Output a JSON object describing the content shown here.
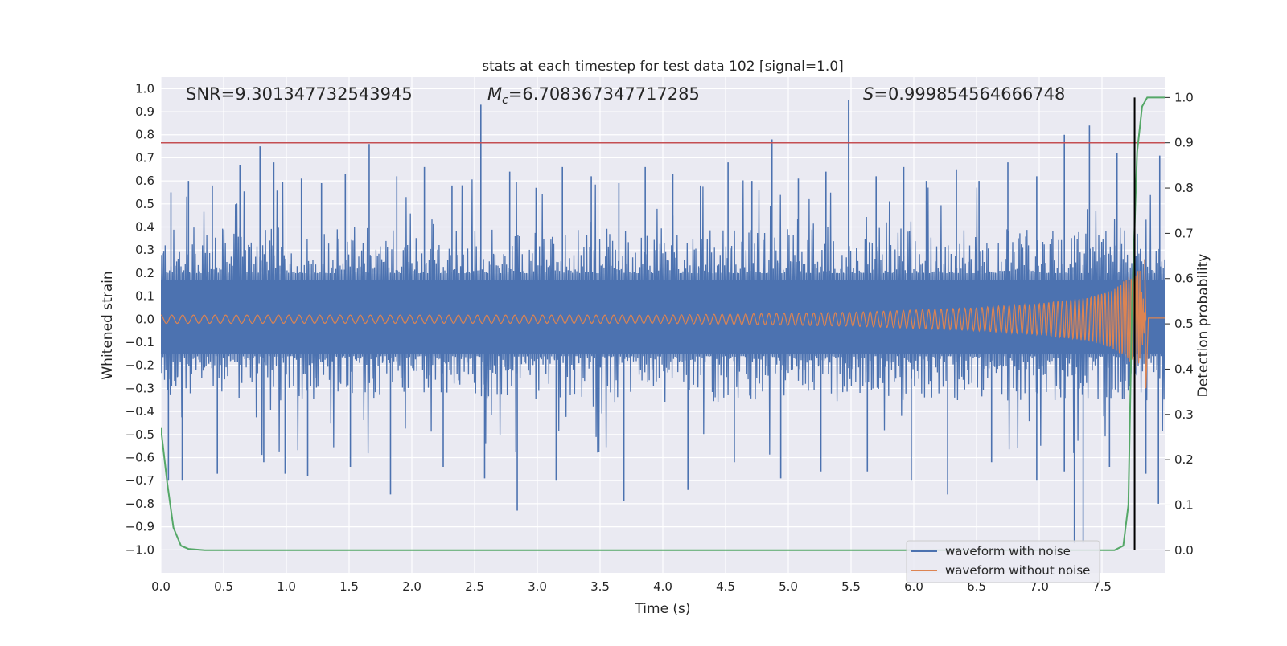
{
  "chart_data": {
    "type": "line",
    "title": "stats at each timestep for test data 102 [signal=1.0]",
    "xlabel": "Time (s)",
    "ylabel": "Whitened strain",
    "ylabel_right": "Detection probability",
    "xlim": [
      0.0,
      8.0
    ],
    "ylim": [
      -1.1,
      1.05
    ],
    "ylim_right": [
      -0.05,
      1.045
    ],
    "x_ticks": [
      "0.0",
      "0.5",
      "1.0",
      "1.5",
      "2.0",
      "2.5",
      "3.0",
      "3.5",
      "4.0",
      "4.5",
      "5.0",
      "5.5",
      "6.0",
      "6.5",
      "7.0",
      "7.5"
    ],
    "y_ticks": [
      "1.0",
      "0.9",
      "0.8",
      "0.7",
      "0.6",
      "0.5",
      "0.4",
      "0.3",
      "0.2",
      "0.1",
      "0.0",
      "−0.1",
      "−0.2",
      "−0.3",
      "−0.4",
      "−0.5",
      "−0.6",
      "−0.7",
      "−0.8",
      "−0.9",
      "−1.0"
    ],
    "y_ticks_right": [
      "1.0",
      "0.9",
      "0.8",
      "0.7",
      "0.6",
      "0.5",
      "0.4",
      "0.3",
      "0.2",
      "0.1",
      "0.0"
    ],
    "annotations": {
      "snr": "SNR=9.301347732543945",
      "mc_symbol": "M",
      "mc_sub": "c",
      "mc_value": "=6.708367347717285",
      "s_symbol": "S",
      "s_value": "=0.999854564666748"
    },
    "threshold": {
      "y_right": 0.9,
      "color": "#c44e52"
    },
    "marker_line": {
      "x": 7.76,
      "y_right_range": [
        0.0,
        1.0
      ],
      "color": "#000000"
    },
    "series": [
      {
        "name": "waveform with noise",
        "color": "#4c72b0",
        "spikes_positive": [
          [
            0.08,
            0.55
          ],
          [
            0.22,
            0.6
          ],
          [
            0.41,
            0.58
          ],
          [
            0.63,
            0.67
          ],
          [
            0.79,
            0.75
          ],
          [
            0.9,
            0.68
          ],
          [
            1.12,
            0.61
          ],
          [
            1.28,
            0.59
          ],
          [
            1.47,
            0.63
          ],
          [
            1.66,
            0.76
          ],
          [
            1.88,
            0.62
          ],
          [
            2.1,
            0.66
          ],
          [
            2.32,
            0.58
          ],
          [
            2.55,
            0.93
          ],
          [
            2.78,
            0.64
          ],
          [
            2.99,
            0.57
          ],
          [
            3.2,
            0.66
          ],
          [
            3.43,
            0.62
          ],
          [
            3.65,
            0.59
          ],
          [
            3.86,
            0.66
          ],
          [
            4.08,
            0.63
          ],
          [
            4.3,
            0.58
          ],
          [
            4.52,
            0.68
          ],
          [
            4.71,
            0.6
          ],
          [
            4.87,
            0.78
          ],
          [
            5.08,
            0.61
          ],
          [
            5.3,
            0.64
          ],
          [
            5.48,
            0.95
          ],
          [
            5.7,
            0.62
          ],
          [
            5.92,
            0.66
          ],
          [
            6.1,
            0.6
          ],
          [
            6.34,
            0.65
          ],
          [
            6.52,
            0.6
          ],
          [
            6.75,
            0.68
          ],
          [
            6.98,
            0.62
          ],
          [
            7.2,
            0.8
          ],
          [
            7.4,
            0.84
          ],
          [
            7.62,
            0.72
          ],
          [
            7.96,
            0.71
          ]
        ],
        "spikes_negative": [
          [
            0.06,
            -0.7
          ],
          [
            0.17,
            -0.7
          ],
          [
            0.45,
            -0.67
          ],
          [
            0.82,
            -0.62
          ],
          [
            0.99,
            -0.67
          ],
          [
            1.17,
            -0.68
          ],
          [
            1.51,
            -0.64
          ],
          [
            1.83,
            -0.76
          ],
          [
            2.25,
            -0.64
          ],
          [
            2.58,
            -0.69
          ],
          [
            2.84,
            -0.83
          ],
          [
            3.15,
            -0.7
          ],
          [
            3.69,
            -0.79
          ],
          [
            4.2,
            -0.74
          ],
          [
            4.57,
            -0.62
          ],
          [
            4.94,
            -0.69
          ],
          [
            5.26,
            -0.66
          ],
          [
            5.63,
            -0.66
          ],
          [
            5.98,
            -0.7
          ],
          [
            6.27,
            -0.76
          ],
          [
            6.62,
            -0.62
          ],
          [
            6.98,
            -0.7
          ],
          [
            7.2,
            -0.66
          ],
          [
            7.28,
            -0.97
          ],
          [
            7.35,
            -0.97
          ],
          [
            7.56,
            -0.64
          ],
          [
            7.85,
            -0.67
          ],
          [
            7.95,
            -0.8
          ]
        ]
      },
      {
        "name": "waveform without noise",
        "color": "#dd8452",
        "envelope": [
          [
            0.0,
            0.018
          ],
          [
            2.0,
            0.018
          ],
          [
            4.0,
            0.018
          ],
          [
            5.5,
            0.03
          ],
          [
            6.5,
            0.05
          ],
          [
            7.0,
            0.068
          ],
          [
            7.4,
            0.095
          ],
          [
            7.6,
            0.13
          ],
          [
            7.75,
            0.2
          ],
          [
            7.8,
            0.22
          ],
          [
            7.85,
            0.0
          ]
        ],
        "peak": {
          "x": 7.85,
          "high": 0.26,
          "low": -0.3
        },
        "tail_y": 0.005
      },
      {
        "name": "detection probability",
        "color": "#55a868",
        "axis": "right",
        "points": [
          [
            0.0,
            0.27
          ],
          [
            0.05,
            0.15
          ],
          [
            0.1,
            0.05
          ],
          [
            0.16,
            0.01
          ],
          [
            0.22,
            0.003
          ],
          [
            0.35,
            0.0
          ],
          [
            1.0,
            0.0
          ],
          [
            7.4,
            0.0
          ],
          [
            7.6,
            0.0
          ],
          [
            7.67,
            0.01
          ],
          [
            7.71,
            0.1
          ],
          [
            7.74,
            0.55
          ],
          [
            7.78,
            0.88
          ],
          [
            7.82,
            0.98
          ],
          [
            7.86,
            1.0
          ],
          [
            8.0,
            1.0
          ]
        ]
      }
    ]
  }
}
